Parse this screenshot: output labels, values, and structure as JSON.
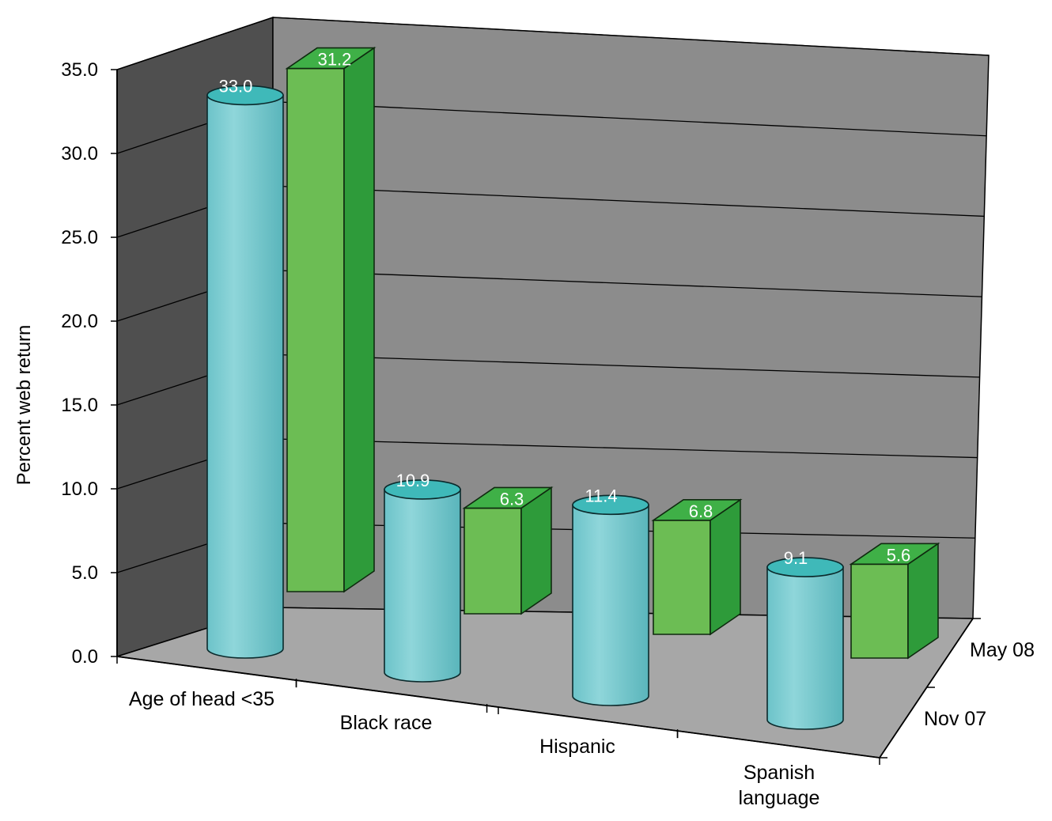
{
  "chart_data": {
    "type": "bar",
    "title": "",
    "xlabel": "",
    "ylabel": "Percent web return",
    "ylim": [
      0,
      35
    ],
    "yticks": [
      "0.0",
      "5.0",
      "10.0",
      "15.0",
      "20.0",
      "25.0",
      "30.0",
      "35.0"
    ],
    "categories": [
      "Age of head <35",
      "Black race",
      "Hispanic",
      [
        "Spanish",
        "language"
      ]
    ],
    "series": [
      {
        "name": "Nov 07",
        "shape": "cylinder",
        "color": "#76c8cc",
        "values": [
          33.0,
          10.9,
          11.4,
          9.1
        ]
      },
      {
        "name": "May 08",
        "shape": "box",
        "color": "#5fb84a",
        "values": [
          31.2,
          6.3,
          6.8,
          5.6
        ]
      }
    ],
    "data_labels": {
      "Nov 07": [
        "33.0",
        "10.9",
        "11.4",
        "9.1"
      ],
      "May 08": [
        "31.2",
        "6.3",
        "6.8",
        "5.6"
      ]
    },
    "grid": true,
    "legend": "none"
  }
}
